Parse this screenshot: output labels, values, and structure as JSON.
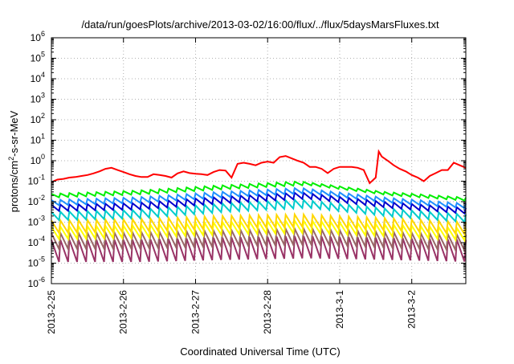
{
  "chart_data": {
    "type": "line",
    "title": "/data/run/goesPlots/archive/2013-03-02/16:00/flux/../flux/5daysMarsFluxes.txt",
    "xlabel": "Coordinated Universal Time (UTC)",
    "ylabel": {
      "pre": "protons/cm",
      "sup": "2",
      "post": "-s-sr-MeV"
    },
    "x_range": [
      "2013-02-25T00:00",
      "2013-03-02T18:00"
    ],
    "x_ticks": [
      "2013-2-25",
      "2013-2-26",
      "2013-2-27",
      "2013-2-28",
      "2013-3-1",
      "2013-3-2"
    ],
    "y_scale": "log",
    "ylim": [
      1e-06,
      1000000.0
    ],
    "y_ticks": [
      {
        "base": "10",
        "exp": "-6"
      },
      {
        "base": "10",
        "exp": "-5"
      },
      {
        "base": "10",
        "exp": "-4"
      },
      {
        "base": "10",
        "exp": "-3"
      },
      {
        "base": "10",
        "exp": "-2"
      },
      {
        "base": "10",
        "exp": "-1"
      },
      {
        "base": "10",
        "exp": "0"
      },
      {
        "base": "10",
        "exp": "1"
      },
      {
        "base": "10",
        "exp": "2"
      },
      {
        "base": "10",
        "exp": "3"
      },
      {
        "base": "10",
        "exp": "4"
      },
      {
        "base": "10",
        "exp": "5"
      },
      {
        "base": "10",
        "exp": "6"
      }
    ],
    "grid": true,
    "legend": "none",
    "series": [
      {
        "color": "#ff0000",
        "x": [
          "2013-02-25T00:00",
          "2013-02-25T02:00",
          "2013-02-25T04:00",
          "2013-02-25T06:00",
          "2013-02-25T08:00",
          "2013-02-25T10:00",
          "2013-02-25T12:00",
          "2013-02-25T14:00",
          "2013-02-25T16:00",
          "2013-02-25T18:00",
          "2013-02-25T20:00",
          "2013-02-25T22:00",
          "2013-02-26T00:00",
          "2013-02-26T02:00",
          "2013-02-26T04:00",
          "2013-02-26T06:00",
          "2013-02-26T08:00",
          "2013-02-26T10:00",
          "2013-02-26T12:00",
          "2013-02-26T14:00",
          "2013-02-26T16:00",
          "2013-02-26T18:00",
          "2013-02-26T20:00",
          "2013-02-26T22:00",
          "2013-02-27T00:00",
          "2013-02-27T02:00",
          "2013-02-27T04:00",
          "2013-02-27T06:00",
          "2013-02-27T08:00",
          "2013-02-27T10:00",
          "2013-02-27T12:00",
          "2013-02-27T14:00",
          "2013-02-27T16:00",
          "2013-02-27T18:00",
          "2013-02-27T20:00",
          "2013-02-27T22:00",
          "2013-02-28T00:00",
          "2013-02-28T02:00",
          "2013-02-28T04:00",
          "2013-02-28T06:00",
          "2013-02-28T08:00",
          "2013-02-28T10:00",
          "2013-02-28T12:00",
          "2013-02-28T14:00",
          "2013-02-28T16:00",
          "2013-02-28T18:00",
          "2013-02-28T20:00",
          "2013-02-28T22:00",
          "2013-03-01T00:00",
          "2013-03-01T02:00",
          "2013-03-01T04:00",
          "2013-03-01T06:00",
          "2013-03-01T08:00",
          "2013-03-01T10:00",
          "2013-03-01T12:00",
          "2013-03-01T13:00",
          "2013-03-01T14:00",
          "2013-03-01T16:00",
          "2013-03-01T18:00",
          "2013-03-01T20:00",
          "2013-03-01T22:00",
          "2013-03-02T00:00",
          "2013-03-02T02:00",
          "2013-03-02T04:00",
          "2013-03-02T06:00",
          "2013-03-02T08:00",
          "2013-03-02T10:00",
          "2013-03-02T12:00",
          "2013-03-02T14:00",
          "2013-03-02T16:00",
          "2013-03-02T18:00"
        ],
        "y": [
          0.09,
          0.12,
          0.13,
          0.15,
          0.16,
          0.18,
          0.2,
          0.24,
          0.3,
          0.4,
          0.45,
          0.35,
          0.28,
          0.22,
          0.18,
          0.16,
          0.16,
          0.22,
          0.2,
          0.18,
          0.15,
          0.24,
          0.3,
          0.25,
          0.23,
          0.22,
          0.2,
          0.28,
          0.35,
          0.33,
          0.15,
          0.7,
          0.8,
          0.7,
          0.6,
          0.8,
          0.9,
          0.8,
          1.5,
          1.7,
          1.3,
          1.0,
          0.8,
          0.5,
          0.5,
          0.4,
          0.25,
          0.4,
          0.5,
          0.5,
          0.5,
          0.45,
          0.35,
          0.08,
          0.15,
          2.8,
          1.6,
          1.0,
          0.6,
          0.4,
          0.3,
          0.2,
          0.15,
          0.1,
          0.18,
          0.25,
          0.35,
          0.35,
          0.8,
          0.6,
          0.45
        ]
      },
      {
        "color": "#00ee00",
        "base": [
          0.02,
          0.028,
          0.05,
          0.08,
          0.025,
          0.013
        ],
        "amp": 1.5
      },
      {
        "color": "#1e90ff",
        "base": [
          0.009,
          0.012,
          0.022,
          0.035,
          0.012,
          0.006
        ],
        "amp": 1.8
      },
      {
        "color": "#0000cd",
        "base": [
          0.005,
          0.006,
          0.012,
          0.02,
          0.007,
          0.0035
        ],
        "amp": 2.0
      },
      {
        "color": "#00cccc",
        "base": [
          0.002,
          0.0025,
          0.005,
          0.008,
          0.003,
          0.0015
        ],
        "amp": 2.5
      },
      {
        "color": "#ffd700",
        "base": [
          0.0006,
          0.0007,
          0.001,
          0.0012,
          0.0008,
          0.0005
        ],
        "amp": 4
      },
      {
        "color": "#ffff00",
        "base": [
          0.0003,
          0.00035,
          0.0005,
          0.0006,
          0.0004,
          0.00025
        ],
        "amp": 4
      },
      {
        "color": "#996666",
        "base": [
          0.00012,
          0.00013,
          0.00016,
          0.0002,
          0.00014,
          0.0001
        ],
        "amp": 6
      },
      {
        "color": "#993366",
        "base": [
          4e-05,
          4e-05,
          5e-05,
          6e-05,
          5e-05,
          4e-05
        ],
        "amp": 12
      }
    ]
  }
}
